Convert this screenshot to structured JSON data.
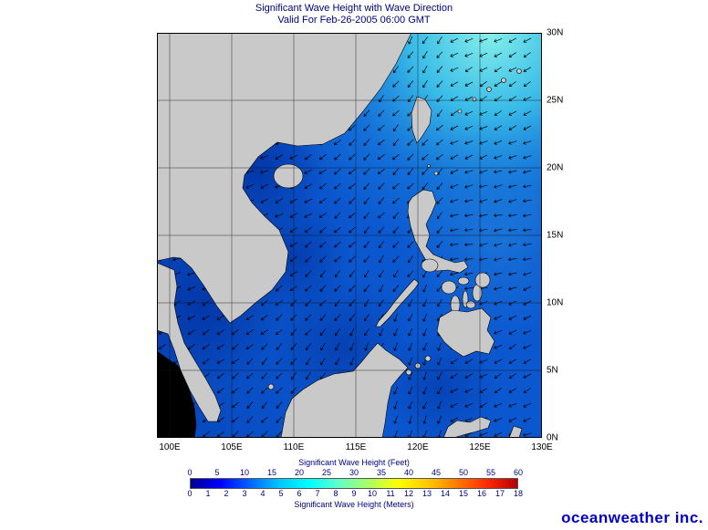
{
  "title": "Significant Wave Height with Wave Direction",
  "subtitle": "Valid For Feb-26-2005 06:00 GMT",
  "map": {
    "lat_labels": [
      "30N",
      "25N",
      "20N",
      "15N",
      "10N",
      "5N",
      "0N"
    ],
    "lon_labels": [
      "100E",
      "105E",
      "110E",
      "115E",
      "120E",
      "125E",
      "130E"
    ],
    "lon_range": [
      "100E",
      "130E"
    ],
    "lat_range": [
      "0N",
      "30N"
    ]
  },
  "colorbar": {
    "feet_label": "Significant Wave Height (Feet)",
    "meters_label": "Significant Wave Height (Meters)",
    "feet_ticks": [
      "0",
      "5",
      "10",
      "15",
      "20",
      "25",
      "30",
      "35",
      "40",
      "45",
      "50",
      "55",
      "60"
    ],
    "meters_ticks": [
      "0",
      "1",
      "2",
      "3",
      "4",
      "5",
      "6",
      "7",
      "8",
      "9",
      "10",
      "11",
      "12",
      "13",
      "14",
      "15",
      "16",
      "17",
      "18"
    ],
    "gradient": [
      "#000090",
      "#0000ff",
      "#0064ff",
      "#00c8ff",
      "#00ffff",
      "#64ffc8",
      "#aaff64",
      "#ffff00",
      "#ffc800",
      "#ff7800",
      "#ff2800",
      "#b40000"
    ]
  },
  "branding": "oceanweather inc.",
  "colors": {
    "land": "#c9c9c9",
    "land_dark": "#000000",
    "ocean_base": "#0b57d0",
    "ocean_high": "#86f0ea",
    "ocean_low": "#012f9e",
    "text": "#000080",
    "brand_blue": "#0000c8",
    "arrow": "#000000"
  },
  "arrows": {
    "spacing": 16,
    "length": 9
  }
}
